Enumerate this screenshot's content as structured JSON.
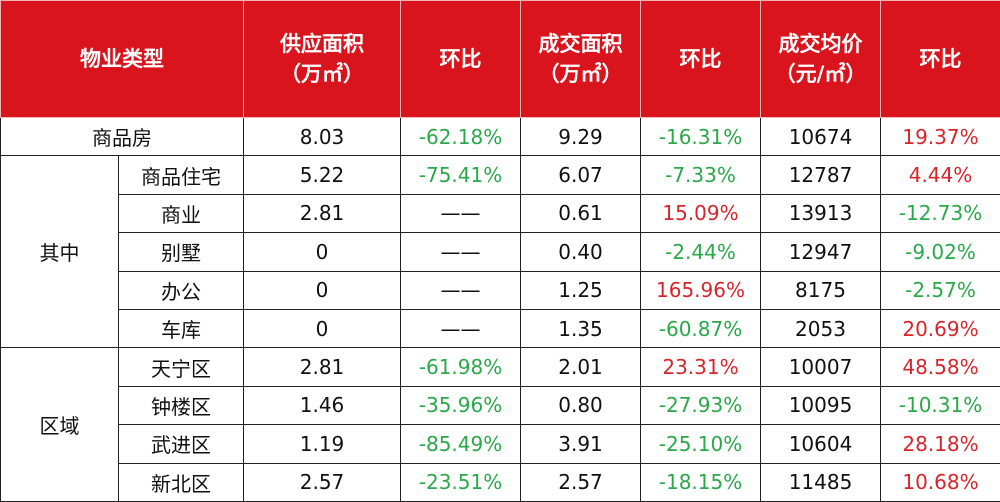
{
  "table": {
    "header": [
      [
        "物业类型"
      ],
      [
        "供应面积",
        "（万㎡）"
      ],
      [
        "环比"
      ],
      [
        "成交面积",
        "（万㎡）"
      ],
      [
        "环比"
      ],
      [
        "成交均价",
        "（元/㎡）"
      ],
      [
        "环比"
      ]
    ],
    "rows": [
      {
        "label": "商品房",
        "cells": [
          "8.03",
          "-62.18%",
          "9.29",
          "-16.31%",
          "10674",
          "19.37%"
        ]
      }
    ],
    "groups": [
      {
        "label": "其中",
        "rows": [
          {
            "label": "商品住宅",
            "cells": [
              "5.22",
              "-75.41%",
              "6.07",
              "-7.33%",
              "12787",
              "4.44%"
            ]
          },
          {
            "label": "商业",
            "cells": [
              "2.81",
              "——",
              "0.61",
              "15.09%",
              "13913",
              "-12.73%"
            ]
          },
          {
            "label": "别墅",
            "cells": [
              "0",
              "——",
              "0.40",
              "-2.44%",
              "12947",
              "-9.02%"
            ]
          },
          {
            "label": "办公",
            "cells": [
              "0",
              "——",
              "1.25",
              "165.96%",
              "8175",
              "-2.57%"
            ]
          },
          {
            "label": "车库",
            "cells": [
              "0",
              "——",
              "1.35",
              "-60.87%",
              "2053",
              "20.69%"
            ]
          }
        ]
      },
      {
        "label": "区域",
        "rows": [
          {
            "label": "天宁区",
            "cells": [
              "2.81",
              "-61.98%",
              "2.01",
              "23.31%",
              "10007",
              "48.58%"
            ]
          },
          {
            "label": "钟楼区",
            "cells": [
              "1.46",
              "-35.96%",
              "0.80",
              "-27.93%",
              "10095",
              "-10.31%"
            ]
          },
          {
            "label": "武进区",
            "cells": [
              "1.19",
              "-85.49%",
              "3.91",
              "-25.10%",
              "10604",
              "28.18%"
            ]
          },
          {
            "label": "新北区",
            "cells": [
              "2.57",
              "-23.51%",
              "2.57",
              "-18.15%",
              "11485",
              "10.68%"
            ]
          }
        ]
      }
    ]
  }
}
